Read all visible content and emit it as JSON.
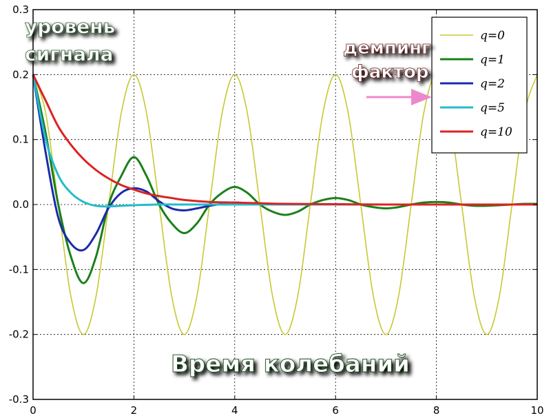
{
  "chart_data": {
    "type": "line",
    "title": "",
    "xlabel": "Время колебаний",
    "ylabel": "уровень сигнала",
    "xlim": [
      0,
      10
    ],
    "ylim": [
      -0.3,
      0.3
    ],
    "grid": true,
    "legend_position": "top-right",
    "legend_note": "демпинг фактор",
    "x_ticks": [
      "0",
      "2",
      "4",
      "6",
      "8",
      "10"
    ],
    "y_ticks": [
      "-0.3",
      "-0.2",
      "-0.1",
      "0.0",
      "0.1",
      "0.2",
      "0.3"
    ],
    "series": [
      {
        "name": "q=0",
        "q": 0,
        "color": "#c8c832",
        "x": [
          0,
          0.25,
          0.5,
          0.75,
          1,
          1.25,
          1.5,
          1.75,
          2,
          2.25,
          2.5,
          2.75,
          3,
          3.25,
          3.5,
          3.75,
          4,
          4.25,
          4.5,
          4.75,
          5,
          5.25,
          5.5,
          5.75,
          6,
          6.25,
          6.5,
          6.75,
          7,
          7.25,
          7.5,
          7.75,
          8,
          8.25,
          8.5,
          8.75,
          9,
          9.25,
          9.5,
          9.75,
          10
        ],
        "y": [
          0.2,
          0.141,
          0,
          -0.141,
          -0.2,
          -0.141,
          0,
          0.141,
          0.2,
          0.141,
          0,
          -0.141,
          -0.2,
          -0.141,
          0,
          0.141,
          0.2,
          0.141,
          0,
          -0.141,
          -0.2,
          -0.141,
          0,
          0.141,
          0.2,
          0.141,
          0,
          -0.141,
          -0.2,
          -0.141,
          0,
          0.141,
          0.2,
          0.141,
          0,
          -0.141,
          -0.2,
          -0.141,
          0,
          0.141,
          0.2
        ]
      },
      {
        "name": "q=1",
        "q": 1,
        "color": "#1a801a",
        "x": [
          0,
          0.25,
          0.5,
          0.75,
          1,
          1.25,
          1.5,
          1.75,
          2,
          2.25,
          2.5,
          2.75,
          3,
          3.25,
          3.5,
          3.75,
          4,
          4.25,
          4.5,
          4.75,
          5,
          5.25,
          5.5,
          5.75,
          6,
          6.25,
          6.5,
          6.75,
          7,
          7.25,
          7.5,
          7.75,
          8,
          8.25,
          8.5,
          8.75,
          9,
          9.25,
          9.5,
          9.75,
          10
        ],
        "y": [
          0.2,
          0.11,
          0,
          -0.08,
          -0.121,
          -0.08,
          0,
          0.044,
          0.073,
          0.044,
          0,
          -0.029,
          -0.044,
          -0.029,
          0,
          0.018,
          0.027,
          0.018,
          0,
          -0.011,
          -0.016,
          -0.011,
          0,
          0.007,
          0.01,
          0.007,
          0,
          -0.004,
          -0.006,
          -0.004,
          0,
          0.003,
          0.004,
          0.003,
          0,
          -0.002,
          -0.002,
          -0.001,
          0,
          0.001,
          0.001
        ]
      },
      {
        "name": "q=2",
        "q": 2,
        "color": "#1a2aaa",
        "x": [
          0,
          0.25,
          0.5,
          0.75,
          1,
          1.25,
          1.5,
          1.75,
          2,
          2.25,
          2.5,
          2.75,
          3,
          3.25,
          3.5,
          3.75,
          4,
          4.5,
          5,
          6,
          7,
          8,
          9,
          10
        ],
        "y": [
          0.2,
          0.08,
          -0.02,
          -0.06,
          -0.07,
          -0.045,
          -0.005,
          0.018,
          0.025,
          0.02,
          0.005,
          -0.006,
          -0.009,
          -0.006,
          -0.002,
          0.001,
          0.003,
          0.001,
          0,
          0,
          0,
          0,
          0,
          0
        ]
      },
      {
        "name": "q=5",
        "q": 5,
        "color": "#22bbcc",
        "x": [
          0,
          0.25,
          0.5,
          0.75,
          1,
          1.25,
          1.5,
          1.75,
          2,
          2.5,
          3,
          3.5,
          4,
          5,
          6,
          7,
          8,
          9,
          10
        ],
        "y": [
          0.2,
          0.1,
          0.045,
          0.018,
          0.004,
          -0.002,
          -0.003,
          -0.002,
          -0.001,
          0,
          0,
          0,
          0,
          0,
          0,
          0,
          0,
          0,
          0
        ]
      },
      {
        "name": "q=10",
        "q": 10,
        "color": "#dd2222",
        "x": [
          0,
          0.25,
          0.5,
          0.75,
          1,
          1.25,
          1.5,
          1.75,
          2,
          2.25,
          2.5,
          2.75,
          3,
          3.5,
          4,
          4.5,
          5,
          6,
          7,
          8,
          9,
          10
        ],
        "y": [
          0.2,
          0.16,
          0.12,
          0.092,
          0.07,
          0.053,
          0.04,
          0.03,
          0.023,
          0.017,
          0.013,
          0.01,
          0.007,
          0.004,
          0.003,
          0.002,
          0.001,
          0.0005,
          0,
          0,
          0,
          0
        ]
      }
    ]
  }
}
